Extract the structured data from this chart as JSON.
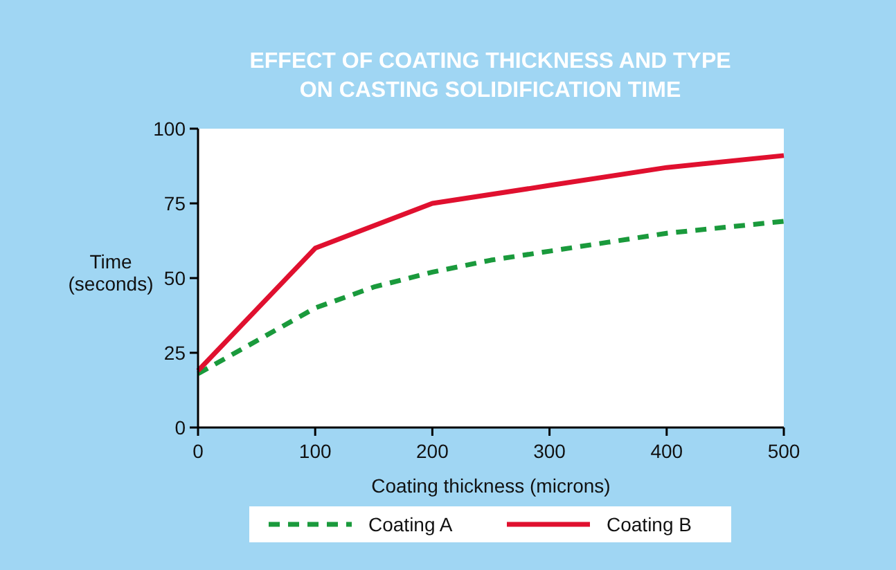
{
  "chart_data": {
    "type": "line",
    "title": "EFFECT OF COATING THICKNESS AND TYPE ON CASTING SOLIDIFICATION TIME",
    "xlabel": "Coating thickness (microns)",
    "ylabel": "Time (seconds)",
    "xlim": [
      0,
      500
    ],
    "xticks": [
      0,
      100,
      200,
      300,
      400,
      500
    ],
    "ylim": [
      0,
      100
    ],
    "yticks": [
      0,
      25,
      50,
      75,
      100
    ],
    "grid": false,
    "legend": "bottom",
    "series": [
      {
        "name": "Coating A",
        "color": "#1a9a3c",
        "line_style": "dashed",
        "x": [
          0,
          50,
          100,
          150,
          200,
          250,
          300,
          350,
          400,
          450,
          500
        ],
        "values": [
          18,
          29,
          40,
          47,
          52,
          56,
          59,
          62,
          65,
          67,
          69
        ]
      },
      {
        "name": "Coating B",
        "color": "#e0102f",
        "line_style": "solid",
        "x": [
          0,
          100,
          200,
          300,
          400,
          500
        ],
        "values": [
          19,
          60,
          75,
          81,
          87,
          91
        ]
      }
    ]
  }
}
